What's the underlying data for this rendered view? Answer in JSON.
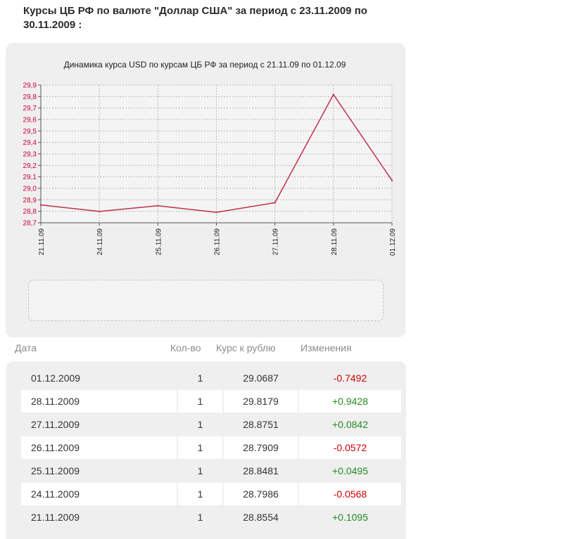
{
  "page": {
    "heading": "Курсы ЦБ РФ по валюте \"Доллар США\" за период с 23.11.2009 по 30.11.2009 :"
  },
  "colors": {
    "line": "#c0304a",
    "ytick": "#cc0033",
    "negative": "#cc0000",
    "positive": "#228b22",
    "panel": "#efefef"
  },
  "chart_data": {
    "type": "line",
    "title": "Динамика курса USD по курсам ЦБ РФ за период с 21.11.09 по 01.12.09",
    "categories": [
      "21.11.09",
      "24.11.09",
      "25.11.09",
      "26.11.09",
      "27.11.09",
      "28.11.09",
      "01.12.09"
    ],
    "values": [
      28.8554,
      28.7986,
      28.8481,
      28.7909,
      28.8751,
      29.8179,
      29.0687
    ],
    "ylim": [
      28.7,
      29.9
    ],
    "yticks": [
      "28,7",
      "28,8",
      "28,9",
      "29,0",
      "29,1",
      "29,2",
      "29,3",
      "29,4",
      "29,5",
      "29,6",
      "29,7",
      "29,8",
      "29,9"
    ],
    "grid": true,
    "xlabel": "",
    "ylabel": ""
  },
  "table": {
    "headers": {
      "date": "Дата",
      "qty": "Кол-во",
      "rate": "Курс к рублю",
      "change": "Изменения"
    },
    "rows": [
      {
        "date": "01.12.2009",
        "qty": "1",
        "rate": "29.0687",
        "change": "-0.7492",
        "sign": "neg"
      },
      {
        "date": "28.11.2009",
        "qty": "1",
        "rate": "29.8179",
        "change": "+0.9428",
        "sign": "pos"
      },
      {
        "date": "27.11.2009",
        "qty": "1",
        "rate": "28.8751",
        "change": "+0.0842",
        "sign": "pos"
      },
      {
        "date": "26.11.2009",
        "qty": "1",
        "rate": "28.7909",
        "change": "-0.0572",
        "sign": "neg"
      },
      {
        "date": "25.11.2009",
        "qty": "1",
        "rate": "28.8481",
        "change": "+0.0495",
        "sign": "pos"
      },
      {
        "date": "24.11.2009",
        "qty": "1",
        "rate": "28.7986",
        "change": "-0.0568",
        "sign": "neg"
      },
      {
        "date": "21.11.2009",
        "qty": "1",
        "rate": "28.8554",
        "change": "+0.1095",
        "sign": "pos"
      }
    ]
  }
}
